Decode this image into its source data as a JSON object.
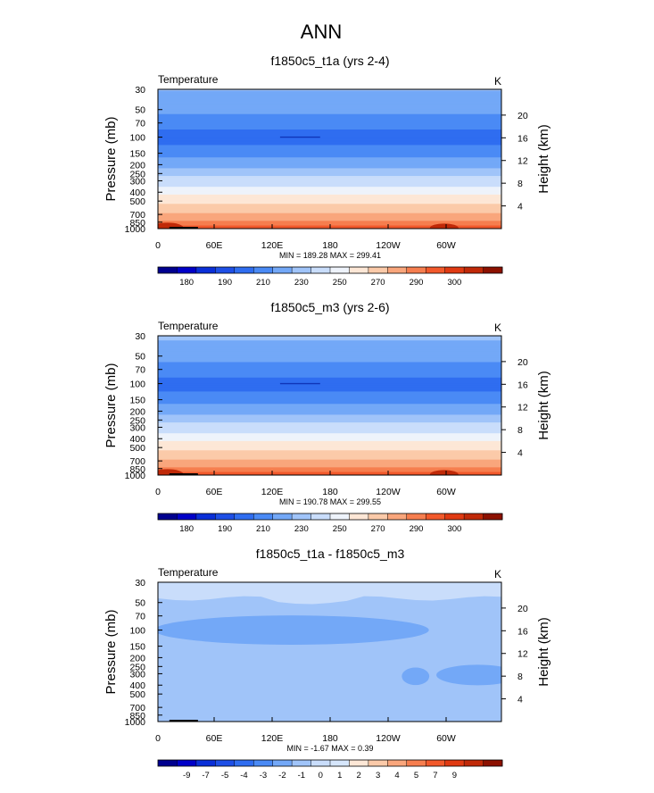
{
  "figure": {
    "title": "ANN"
  },
  "chart_data": [
    {
      "type": "heatmap",
      "title": "f1850c5_t1a (yrs 2-4)",
      "variable": "Temperature",
      "units": "K",
      "xlabel": "",
      "ylabel": "Pressure (mb)",
      "ylabel_right": "Height (km)",
      "x_ticks": [
        "0",
        "60E",
        "120E",
        "180",
        "120W",
        "60W"
      ],
      "y_ticks": [
        "30",
        "50",
        "70",
        "100",
        "150",
        "200",
        "250",
        "300",
        "400",
        "500",
        "700",
        "850",
        "1000"
      ],
      "y_ticks_right": [
        "20",
        "16",
        "12",
        "8",
        "4"
      ],
      "stats": "MIN = 189.28  MAX = 299.41",
      "colorbar": {
        "colors": [
          "#00008f",
          "#0000c8",
          "#0a2fd8",
          "#1e4fe6",
          "#2f6df0",
          "#4a8af5",
          "#73a8f7",
          "#a0c4f9",
          "#c9ddfb",
          "#eef3fb",
          "#fde7d6",
          "#fbcaa9",
          "#f9a67c",
          "#f67e4f",
          "#f2592b",
          "#e03a12",
          "#c02908",
          "#8c1100"
        ],
        "labels": [
          "180",
          "190",
          "210",
          "230",
          "250",
          "270",
          "290",
          "300"
        ]
      },
      "profile_levels": [
        {
          "p": 30,
          "value": 221
        },
        {
          "p": 40,
          "value": 216
        },
        {
          "p": 55,
          "value": 210
        },
        {
          "p": 75,
          "value": 203
        },
        {
          "p": 95,
          "value": 196
        },
        {
          "p": 105,
          "value": 193
        },
        {
          "p": 120,
          "value": 199
        },
        {
          "p": 140,
          "value": 204
        },
        {
          "p": 160,
          "value": 209
        },
        {
          "p": 185,
          "value": 214
        },
        {
          "p": 210,
          "value": 219
        },
        {
          "p": 240,
          "value": 225
        },
        {
          "p": 275,
          "value": 231
        },
        {
          "p": 320,
          "value": 237
        },
        {
          "p": 380,
          "value": 244
        },
        {
          "p": 440,
          "value": 251
        },
        {
          "p": 520,
          "value": 258
        },
        {
          "p": 620,
          "value": 266
        },
        {
          "p": 720,
          "value": 273
        },
        {
          "p": 810,
          "value": 279
        },
        {
          "p": 880,
          "value": 285
        },
        {
          "p": 950,
          "value": 291
        },
        {
          "p": 1000,
          "value": 296
        }
      ]
    },
    {
      "type": "heatmap",
      "title": "f1850c5_m3 (yrs 2-6)",
      "variable": "Temperature",
      "units": "K",
      "xlabel": "",
      "ylabel": "Pressure (mb)",
      "ylabel_right": "Height (km)",
      "x_ticks": [
        "0",
        "60E",
        "120E",
        "180",
        "120W",
        "60W"
      ],
      "y_ticks": [
        "30",
        "50",
        "70",
        "100",
        "150",
        "200",
        "250",
        "300",
        "400",
        "500",
        "700",
        "850",
        "1000"
      ],
      "y_ticks_right": [
        "20",
        "16",
        "12",
        "8",
        "4"
      ],
      "stats": "MIN = 190.78  MAX = 299.55",
      "colorbar": {
        "colors": [
          "#00008f",
          "#0000c8",
          "#0a2fd8",
          "#1e4fe6",
          "#2f6df0",
          "#4a8af5",
          "#73a8f7",
          "#a0c4f9",
          "#c9ddfb",
          "#eef3fb",
          "#fde7d6",
          "#fbcaa9",
          "#f9a67c",
          "#f67e4f",
          "#f2592b",
          "#e03a12",
          "#c02908",
          "#8c1100"
        ],
        "labels": [
          "180",
          "190",
          "210",
          "230",
          "250",
          "270",
          "290",
          "300"
        ]
      },
      "profile_levels": [
        {
          "p": 30,
          "value": 222
        },
        {
          "p": 40,
          "value": 217
        },
        {
          "p": 55,
          "value": 211
        },
        {
          "p": 75,
          "value": 204
        },
        {
          "p": 95,
          "value": 197
        },
        {
          "p": 105,
          "value": 194
        },
        {
          "p": 120,
          "value": 199
        },
        {
          "p": 140,
          "value": 204
        },
        {
          "p": 160,
          "value": 209
        },
        {
          "p": 185,
          "value": 214
        },
        {
          "p": 210,
          "value": 219
        },
        {
          "p": 240,
          "value": 225
        },
        {
          "p": 275,
          "value": 231
        },
        {
          "p": 320,
          "value": 237
        },
        {
          "p": 380,
          "value": 244
        },
        {
          "p": 440,
          "value": 251
        },
        {
          "p": 520,
          "value": 258
        },
        {
          "p": 620,
          "value": 266
        },
        {
          "p": 720,
          "value": 273
        },
        {
          "p": 810,
          "value": 279
        },
        {
          "p": 880,
          "value": 285
        },
        {
          "p": 950,
          "value": 291
        },
        {
          "p": 1000,
          "value": 296
        }
      ]
    },
    {
      "type": "heatmap",
      "title": "f1850c5_t1a - f1850c5_m3",
      "variable": "Temperature",
      "units": "K",
      "xlabel": "",
      "ylabel": "Pressure (mb)",
      "ylabel_right": "Height (km)",
      "x_ticks": [
        "0",
        "60E",
        "120E",
        "180",
        "120W",
        "60W"
      ],
      "y_ticks": [
        "30",
        "50",
        "70",
        "100",
        "150",
        "200",
        "250",
        "300",
        "400",
        "500",
        "700",
        "850",
        "1000"
      ],
      "y_ticks_right": [
        "20",
        "16",
        "12",
        "8",
        "4"
      ],
      "stats": "MIN = -1.67  MAX =  0.39",
      "colorbar": {
        "colors": [
          "#00008f",
          "#0000c8",
          "#0a2fd8",
          "#1e4fe6",
          "#2f6df0",
          "#4a8af5",
          "#73a8f7",
          "#a0c4f9",
          "#c9ddfb",
          "#d6e6fb",
          "#fde7d6",
          "#fbcaa9",
          "#f9a67c",
          "#f67e4f",
          "#f2592b",
          "#e03a12",
          "#c02908",
          "#8c1100"
        ],
        "labels": [
          "-9",
          "-7",
          "-5",
          "-4",
          "-3",
          "-2",
          "-1",
          "0",
          "1",
          "2",
          "3",
          "4",
          "5",
          "7",
          "9"
        ]
      },
      "base_value": -0.5,
      "top_band": {
        "p_top": 30,
        "p_bottom": 45,
        "value": 0.2
      },
      "anomalies": [
        {
          "lon": 140,
          "p": 100,
          "dlon": 60,
          "dp_log": 0.1,
          "value": -1.2
        },
        {
          "lon": 270,
          "p": 320,
          "dlon": 6,
          "dp_log": 0.06,
          "value": -1.2
        },
        {
          "lon": 335,
          "p": 310,
          "dlon": 18,
          "dp_log": 0.07,
          "value": -1.2
        },
        {
          "lon": 12,
          "p": 95,
          "dlon": 3,
          "dp_log": 0.02,
          "value": -1.2
        }
      ]
    }
  ]
}
